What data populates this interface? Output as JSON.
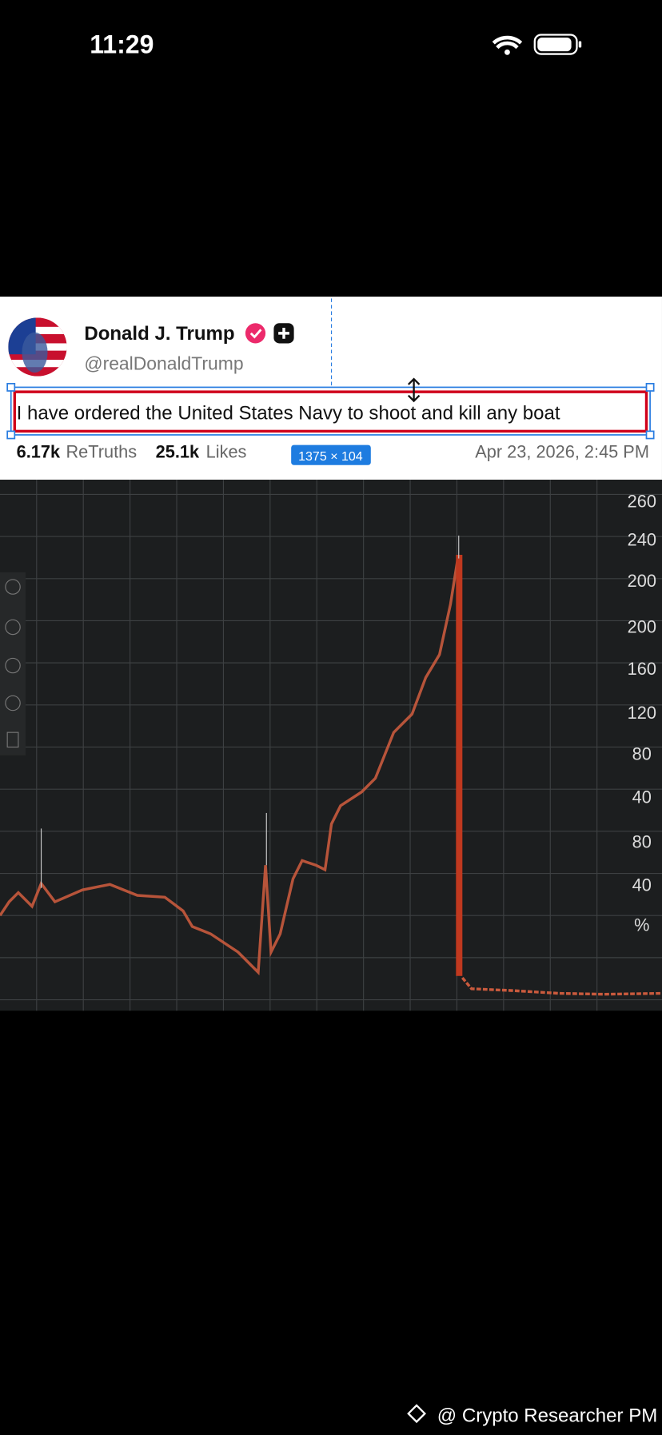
{
  "status_bar": {
    "time": "11:29"
  },
  "post": {
    "name": "Donald J. Trump",
    "handle": "@realDonaldTrump",
    "text": "I have ordered the United States Navy to shoot and kill any boat",
    "retruths_count": "6.17k",
    "retruths_label": "ReTruths",
    "likes_count": "25.1k",
    "likes_label": "Likes",
    "dimension_badge": "1375 × 104",
    "date": "Apr 23, 2026, 2:45 PM"
  },
  "chart_image": {
    "axis_labels": [
      "260",
      "240",
      "200",
      "200",
      "160",
      "120",
      "80",
      "40",
      "80",
      "40",
      "%"
    ]
  },
  "watermark": "@ Crypto Researcher PM"
}
